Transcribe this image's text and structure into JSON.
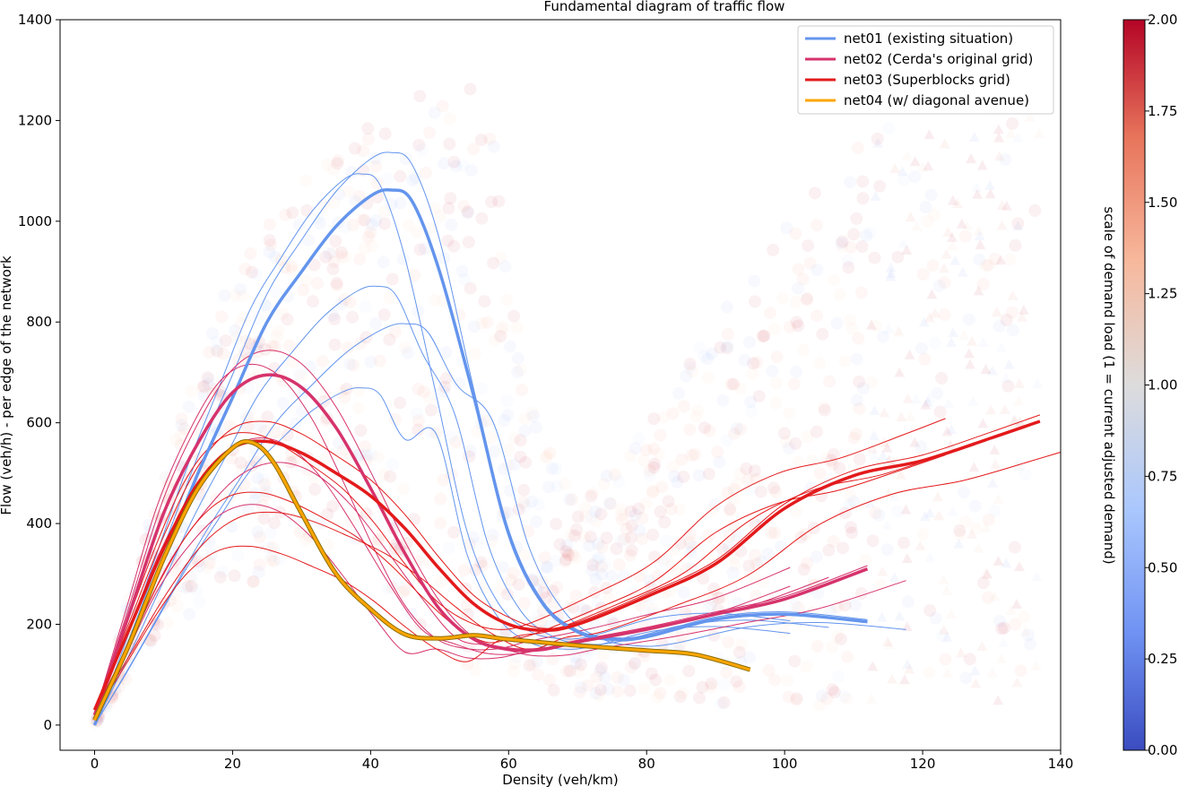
{
  "chart_data": {
    "type": "line",
    "title": "Fundamental diagram of traffic flow",
    "xlabel": "Density (veh/km)",
    "ylabel": "Flow (veh/h) - per edge of the network",
    "xlim": [
      -5,
      140
    ],
    "ylim": [
      -50,
      1400
    ],
    "xticks": [
      "0",
      "20",
      "40",
      "60",
      "80",
      "100",
      "120",
      "140"
    ],
    "yticks": [
      "0",
      "200",
      "400",
      "600",
      "800",
      "1000",
      "1200",
      "1400"
    ],
    "legend_position": "top-right",
    "grid": false,
    "colorbar": {
      "label": "scale of demand load (1 = current adjusted demand)",
      "range": [
        0.0,
        2.0
      ],
      "ticks": [
        "0.00",
        "0.25",
        "0.50",
        "0.75",
        "1.00",
        "1.25",
        "1.50",
        "1.75",
        "2.00"
      ],
      "colormap": "coolwarm",
      "colors": [
        "#3b4cc0",
        "#6f92f3",
        "#aac7fd",
        "#dddcdc",
        "#f7b89c",
        "#e7745b",
        "#b40426"
      ]
    },
    "series": [
      {
        "name": "net01 (existing situation)",
        "color": "#6495ed",
        "x": [
          0,
          5,
          10,
          15,
          20,
          25,
          30,
          35,
          40,
          43,
          46,
          50,
          55,
          60,
          65,
          70,
          75,
          80,
          90,
          100,
          112
        ],
        "y": [
          0,
          160,
          330,
          500,
          650,
          800,
          900,
          990,
          1050,
          1062,
          1040,
          900,
          650,
          380,
          240,
          185,
          170,
          175,
          210,
          220,
          205
        ]
      },
      {
        "name": "net02 (Cerda's original grid)",
        "color": "#d6336c",
        "x": [
          0,
          5,
          10,
          15,
          20,
          25,
          30,
          35,
          40,
          45,
          50,
          55,
          60,
          65,
          70,
          80,
          90,
          100,
          112
        ],
        "y": [
          20,
          220,
          420,
          560,
          660,
          695,
          670,
          590,
          470,
          340,
          230,
          170,
          150,
          150,
          165,
          190,
          220,
          250,
          310
        ]
      },
      {
        "name": "net03 (Superblocks grid)",
        "color": "#e31a1c",
        "x": [
          0,
          5,
          10,
          15,
          20,
          25,
          30,
          35,
          40,
          45,
          50,
          55,
          60,
          65,
          70,
          80,
          90,
          100,
          110,
          120,
          130,
          137
        ],
        "y": [
          30,
          190,
          350,
          480,
          550,
          563,
          540,
          500,
          455,
          390,
          310,
          240,
          200,
          188,
          200,
          255,
          320,
          430,
          495,
          525,
          570,
          603
        ]
      },
      {
        "name": "net04 (w/ diagonal avenue)",
        "color": "#ffa500",
        "x": [
          0,
          5,
          10,
          15,
          20,
          23,
          26,
          30,
          35,
          40,
          45,
          50,
          55,
          60,
          70,
          80,
          87,
          95
        ],
        "y": [
          10,
          160,
          330,
          470,
          550,
          560,
          520,
          420,
          300,
          230,
          180,
          172,
          178,
          170,
          158,
          148,
          140,
          110
        ]
      }
    ]
  }
}
